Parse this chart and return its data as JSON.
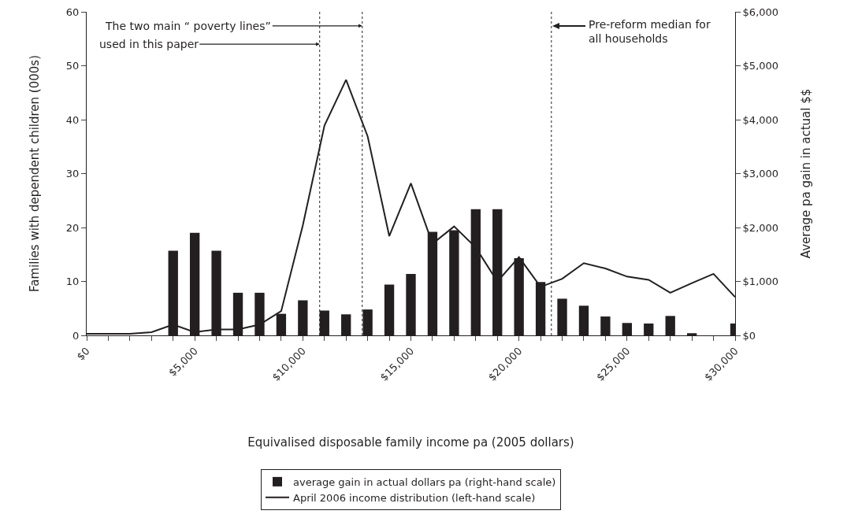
{
  "chart_data": {
    "type": "bar",
    "xlabel": "Equivalised disposable family income pa (2005 dollars)",
    "ylabel": "Families with dependent children (000s)",
    "y2label": "Average pa gain in actual $$",
    "x": [
      0,
      1000,
      2000,
      3000,
      4000,
      5000,
      6000,
      7000,
      8000,
      9000,
      10000,
      11000,
      12000,
      13000,
      14000,
      15000,
      16000,
      17000,
      18000,
      19000,
      20000,
      21000,
      22000,
      23000,
      24000,
      25000,
      26000,
      27000,
      28000,
      29000,
      30000
    ],
    "series": [
      {
        "name": "average gain in actual dollars pa (right-hand scale)",
        "type": "bar",
        "axis": "y2",
        "color": "#231f20",
        "values": [
          null,
          null,
          null,
          null,
          1570,
          1900,
          1570,
          790,
          790,
          400,
          650,
          460,
          390,
          480,
          940,
          1140,
          1920,
          1950,
          2340,
          2340,
          1430,
          990,
          680,
          550,
          350,
          230,
          220,
          360,
          40,
          null,
          220
        ]
      },
      {
        "name": "April 2006 income distribution (left-hand scale)",
        "type": "line",
        "color": "#231f20",
        "values": [
          0.3,
          0.3,
          0.3,
          0.6,
          2.0,
          0.6,
          1.1,
          1.1,
          2.0,
          4.5,
          20.4,
          38.9,
          47.4,
          36.9,
          18.4,
          28.2,
          17.0,
          20.2,
          16.3,
          10.0,
          14.5,
          9.0,
          10.5,
          13.4,
          12.4,
          10.9,
          10.3,
          7.9,
          9.7,
          11.4,
          7.1
        ]
      }
    ],
    "xlim": [
      0,
      30000
    ],
    "xticks": [
      {
        "value": 0,
        "label": "$0"
      },
      {
        "value": 1000,
        "label": null
      },
      {
        "value": 2000,
        "label": null
      },
      {
        "value": 3000,
        "label": null
      },
      {
        "value": 4000,
        "label": null
      },
      {
        "value": 5000,
        "label": "$5,000"
      },
      {
        "value": 6000,
        "label": null
      },
      {
        "value": 7000,
        "label": null
      },
      {
        "value": 8000,
        "label": null
      },
      {
        "value": 9000,
        "label": null
      },
      {
        "value": 10000,
        "label": "$10,000"
      },
      {
        "value": 11000,
        "label": null
      },
      {
        "value": 12000,
        "label": null
      },
      {
        "value": 13000,
        "label": null
      },
      {
        "value": 14000,
        "label": null
      },
      {
        "value": 15000,
        "label": "$15,000"
      },
      {
        "value": 16000,
        "label": null
      },
      {
        "value": 17000,
        "label": null
      },
      {
        "value": 18000,
        "label": null
      },
      {
        "value": 19000,
        "label": null
      },
      {
        "value": 20000,
        "label": "$20,000"
      },
      {
        "value": 21000,
        "label": null
      },
      {
        "value": 22000,
        "label": null
      },
      {
        "value": 23000,
        "label": null
      },
      {
        "value": 24000,
        "label": null
      },
      {
        "value": 25000,
        "label": "$25,000"
      },
      {
        "value": 26000,
        "label": null
      },
      {
        "value": 27000,
        "label": null
      },
      {
        "value": 28000,
        "label": null
      },
      {
        "value": 29000,
        "label": null
      },
      {
        "value": 30000,
        "label": "$30,000"
      }
    ],
    "ylim": [
      0,
      60
    ],
    "yticks": [
      0,
      10,
      20,
      30,
      40,
      50,
      60
    ],
    "y2lim": [
      0,
      6000
    ],
    "y2ticks": [
      {
        "value": 0,
        "label": "$0"
      },
      {
        "value": 1000,
        "label": "$1,000"
      },
      {
        "value": 2000,
        "label": "$2,000"
      },
      {
        "value": 3000,
        "label": "$3,000"
      },
      {
        "value": 4000,
        "label": "$4,000"
      },
      {
        "value": 5000,
        "label": "$5,000"
      },
      {
        "value": 6000,
        "label": "$6,000"
      }
    ],
    "ref_lines": [
      {
        "axis": "x",
        "value": 10780,
        "color": "#231f20",
        "line_style": "dotted"
      },
      {
        "axis": "x",
        "value": 12750,
        "color": "#231f20",
        "line_style": "dotted"
      },
      {
        "axis": "x",
        "value": 21500,
        "color": "#231f20",
        "line_style": "dotted"
      }
    ],
    "annotations": [
      {
        "text": "The two main “ poverty lines”",
        "x": 12750,
        "y": 57.4
      },
      {
        "text": "used in this paper",
        "x": 10780,
        "y": 54.0
      },
      "Pre-reform median for\nall households"
    ],
    "grid": false,
    "legend": "bottom"
  }
}
